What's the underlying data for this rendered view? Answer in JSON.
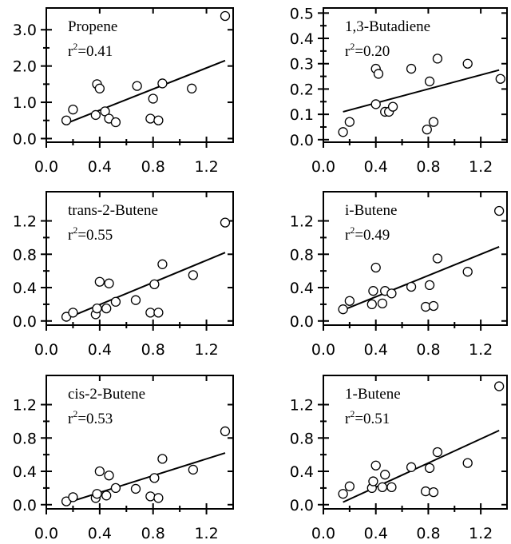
{
  "chart_data": [
    {
      "type": "scatter",
      "title": "Propene",
      "r2_prefix": "r",
      "r2_exp": "2",
      "r2_value": "=0.41",
      "xlim": [
        0.0,
        1.4
      ],
      "ylim": [
        -0.1,
        3.6
      ],
      "xticks": [
        0.0,
        0.4,
        0.8,
        1.2
      ],
      "xtick_labels": [
        "0.0",
        "0.4",
        "0.8",
        "1.2"
      ],
      "yticks": [
        0.0,
        1.0,
        2.0,
        3.0
      ],
      "ytick_labels": [
        "0.0",
        "1.0",
        "2.0",
        "3.0"
      ],
      "points": [
        [
          0.15,
          0.5
        ],
        [
          0.2,
          0.8
        ],
        [
          0.37,
          0.65
        ],
        [
          0.38,
          1.5
        ],
        [
          0.4,
          1.38
        ],
        [
          0.44,
          0.75
        ],
        [
          0.47,
          0.55
        ],
        [
          0.52,
          0.45
        ],
        [
          0.68,
          1.45
        ],
        [
          0.78,
          0.55
        ],
        [
          0.8,
          1.1
        ],
        [
          0.84,
          0.5
        ],
        [
          0.87,
          1.52
        ],
        [
          1.09,
          1.38
        ],
        [
          1.34,
          3.38
        ]
      ],
      "fit_line": {
        "x": [
          0.15,
          1.34
        ],
        "y": [
          0.42,
          2.15
        ]
      }
    },
    {
      "type": "scatter",
      "title": "1,3-Butadiene",
      "r2_prefix": "r",
      "r2_exp": "2",
      "r2_value": "=0.20",
      "xlim": [
        0.0,
        1.4
      ],
      "ylim": [
        -0.01,
        0.52
      ],
      "xticks": [
        0.0,
        0.4,
        0.8,
        1.2
      ],
      "xtick_labels": [
        "0.0",
        "0.4",
        "0.8",
        "1.2"
      ],
      "yticks": [
        0.0,
        0.1,
        0.2,
        0.3,
        0.4,
        0.5
      ],
      "ytick_labels": [
        "0.0",
        "0.1",
        "0.2",
        "0.3",
        "0.4",
        "0.5"
      ],
      "points": [
        [
          0.15,
          0.03
        ],
        [
          0.2,
          0.07
        ],
        [
          0.4,
          0.14
        ],
        [
          0.4,
          0.28
        ],
        [
          0.42,
          0.26
        ],
        [
          0.47,
          0.11
        ],
        [
          0.5,
          0.11
        ],
        [
          0.53,
          0.13
        ],
        [
          0.67,
          0.28
        ],
        [
          0.79,
          0.04
        ],
        [
          0.81,
          0.23
        ],
        [
          0.84,
          0.07
        ],
        [
          0.87,
          0.32
        ],
        [
          1.1,
          0.3
        ],
        [
          1.35,
          0.24
        ]
      ],
      "fit_line": {
        "x": [
          0.15,
          1.34
        ],
        "y": [
          0.11,
          0.275
        ]
      }
    },
    {
      "type": "scatter",
      "title": "trans-2-Butene",
      "r2_prefix": "r",
      "r2_exp": "2",
      "r2_value": "=0.55",
      "xlim": [
        0.0,
        1.4
      ],
      "ylim": [
        -0.05,
        1.55
      ],
      "xticks": [
        0.0,
        0.4,
        0.8,
        1.2
      ],
      "xtick_labels": [
        "0.0",
        "0.4",
        "0.8",
        "1.2"
      ],
      "yticks": [
        0.0,
        0.4,
        0.8,
        1.2
      ],
      "ytick_labels": [
        "0.0",
        "0.4",
        "0.8",
        "1.2"
      ],
      "points": [
        [
          0.15,
          0.05
        ],
        [
          0.2,
          0.1
        ],
        [
          0.37,
          0.08
        ],
        [
          0.38,
          0.15
        ],
        [
          0.4,
          0.47
        ],
        [
          0.45,
          0.15
        ],
        [
          0.47,
          0.45
        ],
        [
          0.52,
          0.23
        ],
        [
          0.67,
          0.25
        ],
        [
          0.78,
          0.1
        ],
        [
          0.81,
          0.44
        ],
        [
          0.84,
          0.1
        ],
        [
          0.87,
          0.68
        ],
        [
          1.1,
          0.55
        ],
        [
          1.34,
          1.18
        ]
      ],
      "fit_line": {
        "x": [
          0.15,
          1.34
        ],
        "y": [
          0.03,
          0.82
        ]
      }
    },
    {
      "type": "scatter",
      "title": "i-Butene",
      "r2_prefix": "r",
      "r2_exp": "2",
      "r2_value": "=0.49",
      "xlim": [
        0.0,
        1.4
      ],
      "ylim": [
        -0.05,
        1.55
      ],
      "xticks": [
        0.0,
        0.4,
        0.8,
        1.2
      ],
      "xtick_labels": [
        "0.0",
        "0.4",
        "0.8",
        "1.2"
      ],
      "yticks": [
        0.0,
        0.4,
        0.8,
        1.2
      ],
      "ytick_labels": [
        "0.0",
        "0.4",
        "0.8",
        "1.2"
      ],
      "points": [
        [
          0.15,
          0.14
        ],
        [
          0.2,
          0.24
        ],
        [
          0.37,
          0.2
        ],
        [
          0.38,
          0.36
        ],
        [
          0.4,
          0.64
        ],
        [
          0.45,
          0.21
        ],
        [
          0.47,
          0.36
        ],
        [
          0.52,
          0.33
        ],
        [
          0.67,
          0.41
        ],
        [
          0.78,
          0.17
        ],
        [
          0.81,
          0.43
        ],
        [
          0.84,
          0.18
        ],
        [
          0.87,
          0.75
        ],
        [
          1.1,
          0.59
        ],
        [
          1.34,
          1.32
        ]
      ],
      "fit_line": {
        "x": [
          0.15,
          1.34
        ],
        "y": [
          0.13,
          0.89
        ]
      }
    },
    {
      "type": "scatter",
      "title": "cis-2-Butene",
      "r2_prefix": "r",
      "r2_exp": "2",
      "r2_value": "=0.53",
      "xlim": [
        0.0,
        1.4
      ],
      "ylim": [
        -0.05,
        1.55
      ],
      "xticks": [
        0.0,
        0.4,
        0.8,
        1.2
      ],
      "xtick_labels": [
        "0.0",
        "0.4",
        "0.8",
        "1.2"
      ],
      "yticks": [
        0.0,
        0.4,
        0.8,
        1.2
      ],
      "ytick_labels": [
        "0.0",
        "0.4",
        "0.8",
        "1.2"
      ],
      "points": [
        [
          0.15,
          0.04
        ],
        [
          0.2,
          0.09
        ],
        [
          0.37,
          0.08
        ],
        [
          0.38,
          0.13
        ],
        [
          0.4,
          0.4
        ],
        [
          0.45,
          0.11
        ],
        [
          0.47,
          0.35
        ],
        [
          0.52,
          0.2
        ],
        [
          0.67,
          0.19
        ],
        [
          0.78,
          0.1
        ],
        [
          0.81,
          0.32
        ],
        [
          0.84,
          0.08
        ],
        [
          0.87,
          0.55
        ],
        [
          1.1,
          0.42
        ],
        [
          1.34,
          0.88
        ]
      ],
      "fit_line": {
        "x": [
          0.15,
          1.34
        ],
        "y": [
          0.02,
          0.62
        ]
      }
    },
    {
      "type": "scatter",
      "title": "1-Butene",
      "r2_prefix": "r",
      "r2_exp": "2",
      "r2_value": "=0.51",
      "xlim": [
        0.0,
        1.4
      ],
      "ylim": [
        -0.05,
        1.55
      ],
      "xticks": [
        0.0,
        0.4,
        0.8,
        1.2
      ],
      "xtick_labels": [
        "0.0",
        "0.4",
        "0.8",
        "1.2"
      ],
      "yticks": [
        0.0,
        0.4,
        0.8,
        1.2
      ],
      "ytick_labels": [
        "0.0",
        "0.4",
        "0.8",
        "1.2"
      ],
      "points": [
        [
          0.15,
          0.13
        ],
        [
          0.2,
          0.22
        ],
        [
          0.37,
          0.2
        ],
        [
          0.38,
          0.28
        ],
        [
          0.4,
          0.47
        ],
        [
          0.45,
          0.21
        ],
        [
          0.47,
          0.36
        ],
        [
          0.52,
          0.21
        ],
        [
          0.67,
          0.45
        ],
        [
          0.78,
          0.16
        ],
        [
          0.81,
          0.44
        ],
        [
          0.84,
          0.15
        ],
        [
          0.87,
          0.63
        ],
        [
          1.1,
          0.5
        ],
        [
          1.34,
          1.42
        ]
      ],
      "fit_line": {
        "x": [
          0.15,
          1.34
        ],
        "y": [
          0.03,
          0.89
        ]
      }
    }
  ]
}
